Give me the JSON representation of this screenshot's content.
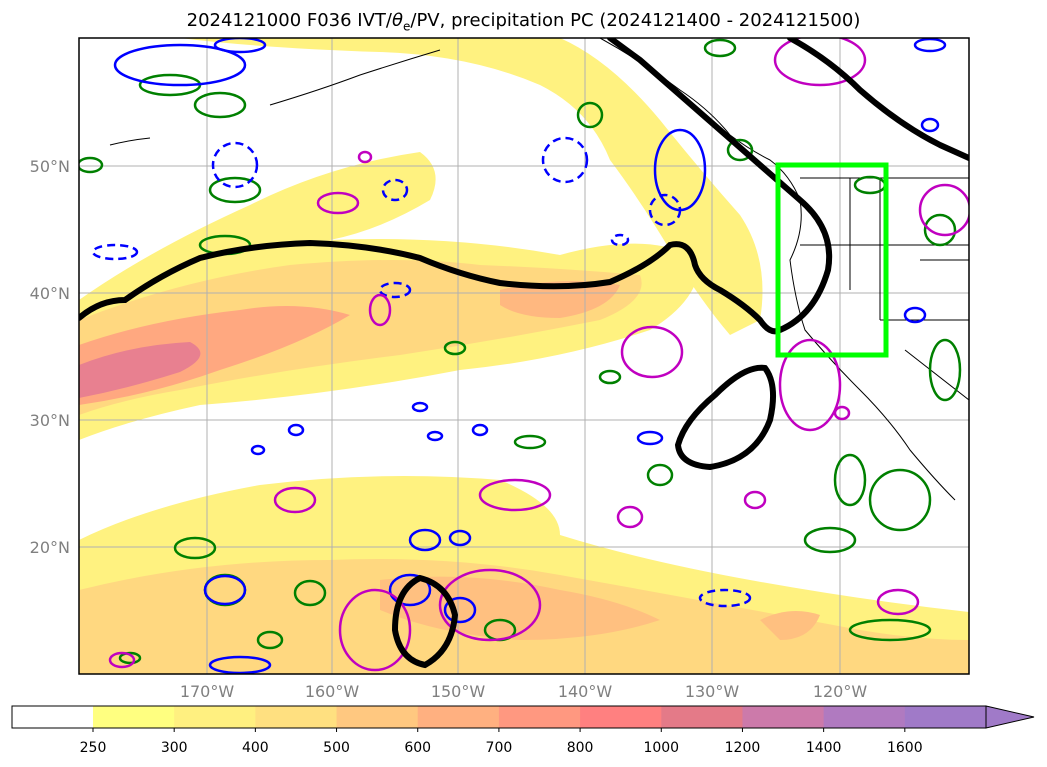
{
  "title": {
    "prefix": "2024121000 F036 IVT/",
    "theta": "θ",
    "theta_sub": "e",
    "suffix": "/PV, precipitation PC (2024121400 - 2024121500)"
  },
  "map": {
    "lat_labels": [
      "50°N",
      "40°N",
      "30°N",
      "20°N"
    ],
    "lon_labels": [
      "170°W",
      "160°W",
      "150°W",
      "140°W",
      "130°W",
      "120°W"
    ],
    "tick_label_color": "#808080",
    "grid_color": "#b0b0b0",
    "highlight_box_color": "#00ff00",
    "pv_contour_color": "#000000"
  },
  "colorbar": {
    "ticks": [
      "250",
      "300",
      "400",
      "500",
      "600",
      "700",
      "800",
      "1000",
      "1200",
      "1400",
      "1600"
    ],
    "colors": [
      "#ffffff",
      "#ffff80",
      "#fff080",
      "#ffe080",
      "#ffc880",
      "#ffb080",
      "#ff9880",
      "#ff8080",
      "#e47a88",
      "#cc7aaa",
      "#b07ac0",
      "#a07ac8"
    ]
  },
  "contour_colors": {
    "green": "#008000",
    "blue": "#0000ff",
    "magenta": "#c000c0"
  }
}
